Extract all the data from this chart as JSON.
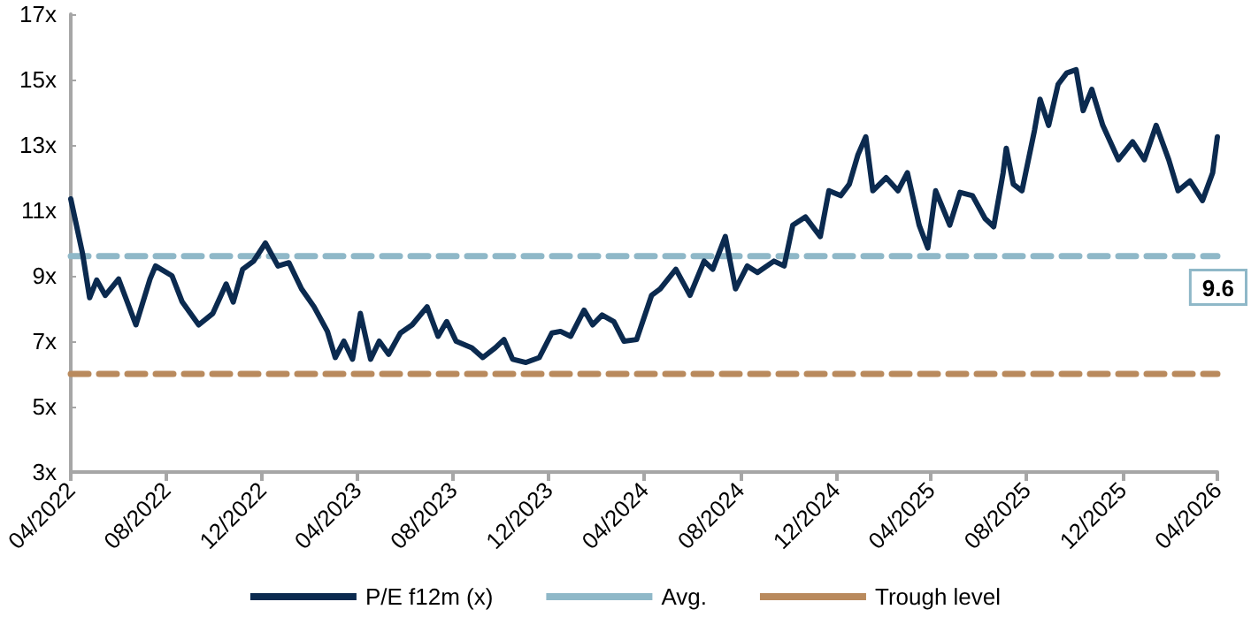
{
  "chart_data": {
    "type": "line",
    "x": [
      "2022-04-01",
      "2022-04-16",
      "2022-04-25",
      "2022-05-04",
      "2022-05-15",
      "2022-06-01",
      "2022-06-23",
      "2022-07-11",
      "2022-07-18",
      "2022-08-08",
      "2022-08-21",
      "2022-09-11",
      "2022-09-29",
      "2022-10-16",
      "2022-10-25",
      "2022-11-06",
      "2022-11-20",
      "2022-12-05",
      "2022-12-21",
      "2023-01-04",
      "2023-01-20",
      "2023-02-05",
      "2023-02-22",
      "2023-03-04",
      "2023-03-15",
      "2023-03-26",
      "2023-04-05",
      "2023-04-18",
      "2023-04-29",
      "2023-05-11",
      "2023-05-26",
      "2023-06-10",
      "2023-06-29",
      "2023-07-13",
      "2023-07-24",
      "2023-08-05",
      "2023-08-25",
      "2023-09-08",
      "2023-09-24",
      "2023-10-05",
      "2023-10-16",
      "2023-11-02",
      "2023-11-19",
      "2023-12-05",
      "2023-12-16",
      "2023-12-29",
      "2024-01-15",
      "2024-01-26",
      "2024-02-07",
      "2024-02-22",
      "2024-03-06",
      "2024-03-22",
      "2024-04-10",
      "2024-04-21",
      "2024-05-11",
      "2024-05-29",
      "2024-06-16",
      "2024-06-27",
      "2024-07-13",
      "2024-07-26",
      "2024-08-10",
      "2024-08-23",
      "2024-09-13",
      "2024-09-26",
      "2024-10-07",
      "2024-10-23",
      "2024-11-11",
      "2024-11-22",
      "2024-12-07",
      "2024-12-18",
      "2024-12-29",
      "2025-01-08",
      "2025-01-17",
      "2025-02-03",
      "2025-02-18",
      "2025-03-02",
      "2025-03-17",
      "2025-03-28",
      "2025-04-07",
      "2025-04-25",
      "2025-05-08",
      "2025-05-24",
      "2025-06-09",
      "2025-06-20",
      "2025-07-02",
      "2025-07-06",
      "2025-07-15",
      "2025-07-26",
      "2025-08-11",
      "2025-08-18",
      "2025-08-29",
      "2025-09-10",
      "2025-09-21",
      "2025-10-03",
      "2025-10-12",
      "2025-10-23",
      "2025-11-06",
      "2025-11-26",
      "2025-12-14",
      "2025-12-29",
      "2026-01-13",
      "2026-01-29",
      "2026-02-10",
      "2026-02-25",
      "2026-03-13",
      "2026-03-26",
      "2026-04-01"
    ],
    "series": [
      {
        "name": "P/E f12m (x)",
        "color": "#0b2a4f",
        "values": [
          11.35,
          9.68,
          8.33,
          8.87,
          8.4,
          8.9,
          7.5,
          8.9,
          9.3,
          9.0,
          8.2,
          7.5,
          7.85,
          8.75,
          8.2,
          9.2,
          9.45,
          10.0,
          9.3,
          9.4,
          8.6,
          8.05,
          7.3,
          6.5,
          7.0,
          6.45,
          7.85,
          6.45,
          7.0,
          6.6,
          7.25,
          7.5,
          8.05,
          7.15,
          7.6,
          7.0,
          6.8,
          6.5,
          6.8,
          7.05,
          6.45,
          6.35,
          6.5,
          7.25,
          7.3,
          7.15,
          7.95,
          7.5,
          7.8,
          7.6,
          7.0,
          7.05,
          8.4,
          8.6,
          9.2,
          8.4,
          9.45,
          9.2,
          10.2,
          8.6,
          9.3,
          9.1,
          9.45,
          9.3,
          10.55,
          10.8,
          10.2,
          11.6,
          11.45,
          11.8,
          12.7,
          13.25,
          11.6,
          12.0,
          11.6,
          12.15,
          10.55,
          9.85,
          11.6,
          10.55,
          11.55,
          11.45,
          10.75,
          10.5,
          12.15,
          12.9,
          11.8,
          11.6,
          13.45,
          14.4,
          13.6,
          14.85,
          15.2,
          15.3,
          14.05,
          14.7,
          13.6,
          12.55,
          13.1,
          12.55,
          13.6,
          12.55,
          11.6,
          11.9,
          11.3,
          12.15,
          13.25
        ]
      }
    ],
    "ref_lines": [
      {
        "axis": "y",
        "value": 9.6,
        "label": "Avg.",
        "color": "#8fb8c8",
        "line_style": "dashed"
      },
      {
        "axis": "y",
        "value": 6.0,
        "label": "Trough level",
        "color": "#b98a5d",
        "line_style": "dashed"
      }
    ],
    "annotations": [
      "9.6"
    ],
    "xlim": [
      "2022-04-01",
      "2026-04-01"
    ],
    "xticks": [
      {
        "value": "2022-04-01",
        "label": "04/2022"
      },
      {
        "value": "2022-08-01",
        "label": "08/2022"
      },
      {
        "value": "2022-12-01",
        "label": "12/2022"
      },
      {
        "value": "2023-04-01",
        "label": "04/2023"
      },
      {
        "value": "2023-08-01",
        "label": "08/2023"
      },
      {
        "value": "2023-12-01",
        "label": "12/2023"
      },
      {
        "value": "2024-04-01",
        "label": "04/2024"
      },
      {
        "value": "2024-08-01",
        "label": "08/2024"
      },
      {
        "value": "2024-12-01",
        "label": "12/2024"
      },
      {
        "value": "2025-04-01",
        "label": "04/2025"
      },
      {
        "value": "2025-08-01",
        "label": "08/2025"
      },
      {
        "value": "2025-12-01",
        "label": "12/2025"
      },
      {
        "value": "2026-04-01",
        "label": "04/2026"
      }
    ],
    "ylim": [
      3,
      17
    ],
    "yticks": [
      {
        "value": 3,
        "label": "3x"
      },
      {
        "value": 5,
        "label": "5x"
      },
      {
        "value": 7,
        "label": "7x"
      },
      {
        "value": 9,
        "label": "9x"
      },
      {
        "value": 11,
        "label": "11x"
      },
      {
        "value": 13,
        "label": "13x"
      },
      {
        "value": 15,
        "label": "15x"
      },
      {
        "value": 17,
        "label": "17x"
      }
    ],
    "grid": false,
    "legend": "bottom",
    "marker": "none",
    "line_style": "solid"
  }
}
